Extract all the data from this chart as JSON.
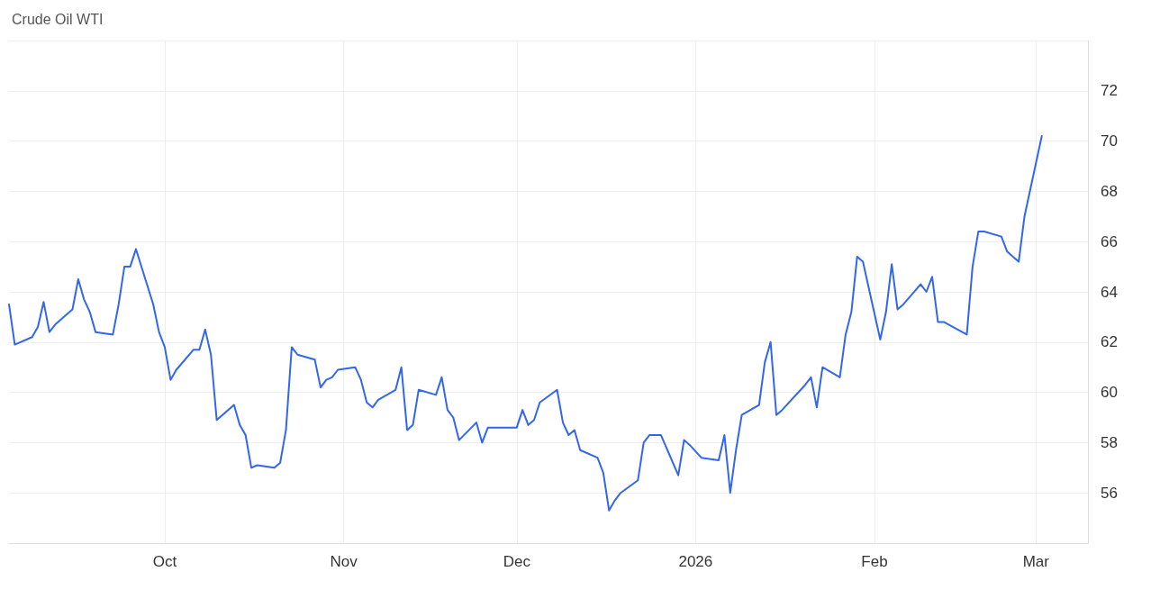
{
  "chart_data": {
    "type": "line",
    "title": "Crude Oil WTI",
    "x": [
      "2025-09-04",
      "2025-09-05",
      "2025-09-08",
      "2025-09-09",
      "2025-09-10",
      "2025-09-11",
      "2025-09-12",
      "2025-09-15",
      "2025-09-16",
      "2025-09-17",
      "2025-09-18",
      "2025-09-19",
      "2025-09-22",
      "2025-09-23",
      "2025-09-24",
      "2025-09-25",
      "2025-09-26",
      "2025-09-29",
      "2025-09-30",
      "2025-10-01",
      "2025-10-02",
      "2025-10-03",
      "2025-10-06",
      "2025-10-07",
      "2025-10-08",
      "2025-10-09",
      "2025-10-10",
      "2025-10-13",
      "2025-10-14",
      "2025-10-15",
      "2025-10-16",
      "2025-10-17",
      "2025-10-20",
      "2025-10-21",
      "2025-10-22",
      "2025-10-23",
      "2025-10-24",
      "2025-10-27",
      "2025-10-28",
      "2025-10-29",
      "2025-10-30",
      "2025-10-31",
      "2025-11-03",
      "2025-11-04",
      "2025-11-05",
      "2025-11-06",
      "2025-11-07",
      "2025-11-10",
      "2025-11-11",
      "2025-11-12",
      "2025-11-13",
      "2025-11-14",
      "2025-11-17",
      "2025-11-18",
      "2025-11-19",
      "2025-11-20",
      "2025-11-21",
      "2025-11-24",
      "2025-11-25",
      "2025-11-26",
      "2025-11-28",
      "2025-12-01",
      "2025-12-02",
      "2025-12-03",
      "2025-12-04",
      "2025-12-05",
      "2025-12-08",
      "2025-12-09",
      "2025-12-10",
      "2025-12-11",
      "2025-12-12",
      "2025-12-15",
      "2025-12-16",
      "2025-12-17",
      "2025-12-18",
      "2025-12-19",
      "2025-12-22",
      "2025-12-23",
      "2025-12-24",
      "2025-12-26",
      "2025-12-29",
      "2025-12-30",
      "2025-12-31",
      "2026-01-02",
      "2026-01-05",
      "2026-01-06",
      "2026-01-07",
      "2026-01-08",
      "2026-01-09",
      "2026-01-12",
      "2026-01-13",
      "2026-01-14",
      "2026-01-15",
      "2026-01-16",
      "2026-01-20",
      "2026-01-21",
      "2026-01-22",
      "2026-01-23",
      "2026-01-26",
      "2026-01-27",
      "2026-01-28",
      "2026-01-29",
      "2026-01-30",
      "2026-02-02",
      "2026-02-03",
      "2026-02-04",
      "2026-02-05",
      "2026-02-06",
      "2026-02-09",
      "2026-02-10",
      "2026-02-11",
      "2026-02-12",
      "2026-02-13",
      "2026-02-17",
      "2026-02-18",
      "2026-02-19",
      "2026-02-20",
      "2026-02-23",
      "2026-02-24",
      "2026-02-25",
      "2026-02-26",
      "2026-02-27",
      "2026-03-02"
    ],
    "series": [
      {
        "color": "#3366ee",
        "values": [
          63.5,
          61.9,
          62.2,
          62.6,
          63.6,
          62.4,
          62.7,
          63.3,
          64.5,
          63.7,
          63.2,
          62.4,
          62.3,
          63.5,
          65.0,
          65.0,
          65.7,
          63.5,
          62.4,
          61.8,
          60.5,
          60.9,
          61.7,
          61.7,
          62.5,
          61.5,
          58.9,
          59.5,
          58.7,
          58.3,
          57.0,
          57.1,
          57.0,
          57.2,
          58.5,
          61.8,
          61.5,
          61.3,
          60.2,
          60.5,
          60.6,
          60.9,
          61.0,
          60.5,
          59.6,
          59.4,
          59.7,
          60.1,
          61.0,
          58.5,
          58.7,
          60.1,
          59.9,
          60.6,
          59.3,
          59.0,
          58.1,
          58.8,
          58.0,
          58.6,
          58.6,
          58.6,
          59.3,
          58.7,
          58.9,
          59.6,
          60.1,
          58.8,
          58.3,
          58.5,
          57.7,
          57.4,
          56.8,
          55.3,
          55.7,
          56.0,
          56.5,
          58.0,
          58.3,
          58.3,
          56.7,
          58.1,
          57.9,
          57.4,
          57.3,
          58.3,
          56.0,
          57.7,
          59.1,
          59.5,
          61.2,
          62.0,
          59.1,
          59.3,
          60.3,
          60.6,
          59.4,
          61.0,
          60.6,
          62.3,
          63.2,
          65.4,
          65.2,
          62.1,
          63.2,
          65.1,
          63.3,
          63.5,
          64.3,
          64.0,
          64.6,
          62.8,
          62.8,
          62.3,
          65.0,
          66.4,
          66.4,
          66.2,
          65.6,
          65.4,
          65.2,
          67.0,
          70.2
        ]
      }
    ],
    "xlim": [
      "2025-09-04",
      "2026-03-10"
    ],
    "xticks": [
      {
        "value": "2025-10-01",
        "label": "Oct"
      },
      {
        "value": "2025-11-01",
        "label": "Nov"
      },
      {
        "value": "2025-12-01",
        "label": "Dec"
      },
      {
        "value": "2026-01-01",
        "label": "2026"
      },
      {
        "value": "2026-02-01",
        "label": "Feb"
      },
      {
        "value": "2026-03-01",
        "label": "Mar"
      }
    ],
    "ylim": [
      54,
      74
    ],
    "yticks": [
      56,
      58,
      60,
      62,
      64,
      66,
      68,
      70,
      72,
      {
        "value": 74,
        "label": null
      }
    ],
    "grid": true,
    "marker": "none",
    "line_style": "solid"
  }
}
